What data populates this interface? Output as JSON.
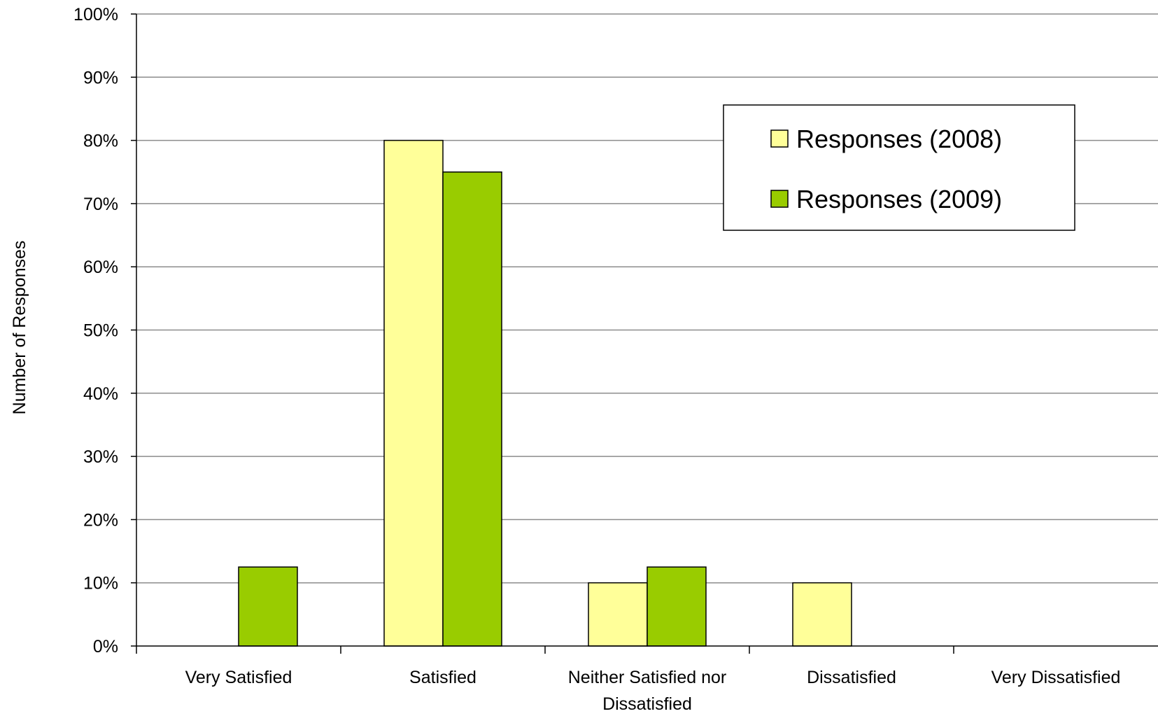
{
  "chart_data": {
    "type": "bar",
    "title": "",
    "xlabel": "",
    "ylabel": "Number of Responses",
    "ylim": [
      0,
      100
    ],
    "y_unit": "%",
    "y_ticks": [
      "0%",
      "10%",
      "20%",
      "30%",
      "40%",
      "50%",
      "60%",
      "70%",
      "80%",
      "90%",
      "100%"
    ],
    "grid": true,
    "legend_position": "top-right",
    "categories": [
      [
        "Very Satisfied"
      ],
      [
        "Satisfied"
      ],
      [
        "Neither Satisfied nor",
        "Dissatisfied"
      ],
      [
        "Dissatisfied"
      ],
      [
        "Very Dissatisfied"
      ]
    ],
    "series": [
      {
        "name": "Responses (2008)",
        "color": "#ffff99",
        "values": [
          0,
          80,
          10,
          10,
          0
        ]
      },
      {
        "name": "Responses (2009)",
        "color": "#99cc00",
        "values": [
          12.5,
          75,
          12.5,
          0,
          0
        ]
      }
    ]
  }
}
